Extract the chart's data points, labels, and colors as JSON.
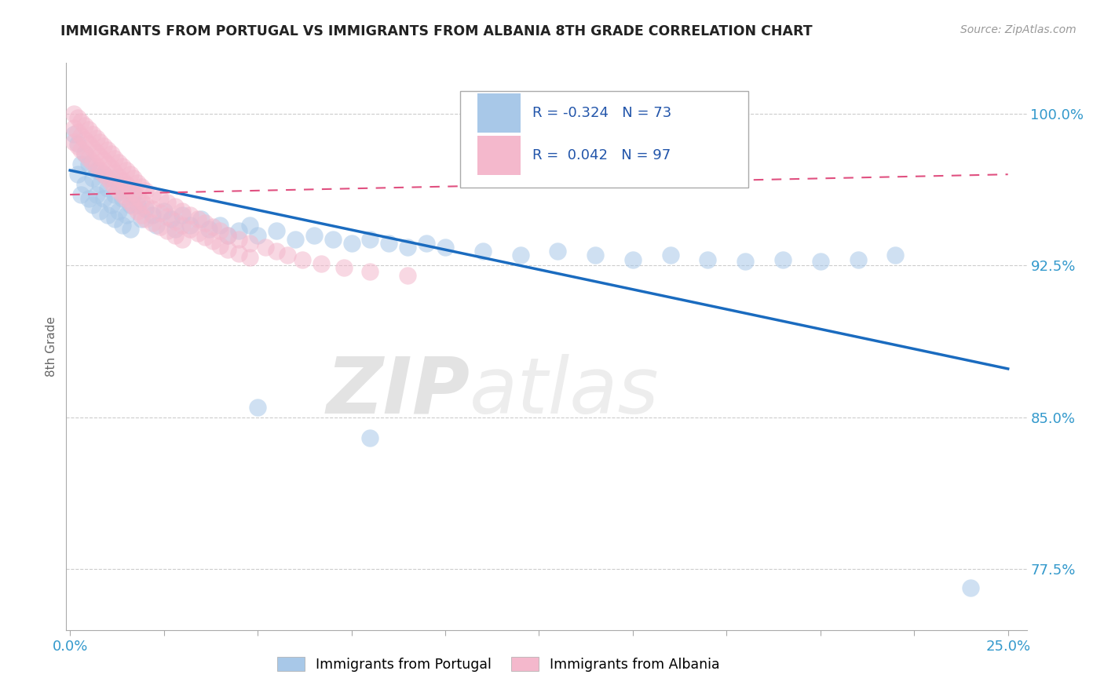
{
  "title": "IMMIGRANTS FROM PORTUGAL VS IMMIGRANTS FROM ALBANIA 8TH GRADE CORRELATION CHART",
  "source_text": "Source: ZipAtlas.com",
  "ylabel": "8th Grade",
  "xlim": [
    -0.001,
    0.255
  ],
  "ylim": [
    0.745,
    1.025
  ],
  "xtick_positions": [
    0.0,
    0.025,
    0.05,
    0.075,
    0.1,
    0.125,
    0.15,
    0.175,
    0.2,
    0.225,
    0.25
  ],
  "xtick_labels_show": [
    "0.0%",
    "",
    "",
    "",
    "",
    "",
    "",
    "",
    "",
    "",
    "25.0%"
  ],
  "ytick_positions": [
    0.775,
    0.85,
    0.925,
    1.0
  ],
  "ytick_labels": [
    "77.5%",
    "85.0%",
    "92.5%",
    "100.0%"
  ],
  "grid_color": "#cccccc",
  "blue_dot_color": "#a8c8e8",
  "pink_dot_color": "#f4b8cc",
  "blue_line_color": "#1a6bbf",
  "pink_line_color": "#e05080",
  "R_blue": -0.324,
  "N_blue": 73,
  "R_pink": 0.042,
  "N_pink": 97,
  "watermark_zip": "ZIP",
  "watermark_atlas": "atlas",
  "legend_items": [
    "Immigrants from Portugal",
    "Immigrants from Albania"
  ],
  "blue_trend_x0": 0.0,
  "blue_trend_y0": 0.972,
  "blue_trend_x1": 0.25,
  "blue_trend_y1": 0.874,
  "pink_trend_x0": 0.0,
  "pink_trend_y0": 0.96,
  "pink_trend_x1": 0.25,
  "pink_trend_y1": 0.97,
  "blue_dots": [
    [
      0.001,
      0.99
    ],
    [
      0.002,
      0.985
    ],
    [
      0.002,
      0.97
    ],
    [
      0.003,
      0.975
    ],
    [
      0.003,
      0.96
    ],
    [
      0.004,
      0.98
    ],
    [
      0.004,
      0.965
    ],
    [
      0.005,
      0.975
    ],
    [
      0.005,
      0.958
    ],
    [
      0.006,
      0.968
    ],
    [
      0.006,
      0.955
    ],
    [
      0.007,
      0.972
    ],
    [
      0.007,
      0.96
    ],
    [
      0.008,
      0.965
    ],
    [
      0.008,
      0.952
    ],
    [
      0.009,
      0.97
    ],
    [
      0.009,
      0.958
    ],
    [
      0.01,
      0.963
    ],
    [
      0.01,
      0.95
    ],
    [
      0.011,
      0.968
    ],
    [
      0.011,
      0.955
    ],
    [
      0.012,
      0.96
    ],
    [
      0.012,
      0.948
    ],
    [
      0.013,
      0.965
    ],
    [
      0.013,
      0.952
    ],
    [
      0.014,
      0.958
    ],
    [
      0.014,
      0.945
    ],
    [
      0.015,
      0.962
    ],
    [
      0.015,
      0.95
    ],
    [
      0.016,
      0.955
    ],
    [
      0.016,
      0.943
    ],
    [
      0.017,
      0.96
    ],
    [
      0.018,
      0.955
    ],
    [
      0.019,
      0.948
    ],
    [
      0.02,
      0.953
    ],
    [
      0.022,
      0.95
    ],
    [
      0.023,
      0.945
    ],
    [
      0.025,
      0.952
    ],
    [
      0.027,
      0.948
    ],
    [
      0.028,
      0.943
    ],
    [
      0.03,
      0.95
    ],
    [
      0.032,
      0.945
    ],
    [
      0.035,
      0.948
    ],
    [
      0.037,
      0.943
    ],
    [
      0.04,
      0.945
    ],
    [
      0.042,
      0.94
    ],
    [
      0.045,
      0.942
    ],
    [
      0.048,
      0.945
    ],
    [
      0.05,
      0.94
    ],
    [
      0.055,
      0.942
    ],
    [
      0.06,
      0.938
    ],
    [
      0.065,
      0.94
    ],
    [
      0.07,
      0.938
    ],
    [
      0.075,
      0.936
    ],
    [
      0.08,
      0.938
    ],
    [
      0.085,
      0.936
    ],
    [
      0.09,
      0.934
    ],
    [
      0.095,
      0.936
    ],
    [
      0.1,
      0.934
    ],
    [
      0.11,
      0.932
    ],
    [
      0.12,
      0.93
    ],
    [
      0.13,
      0.932
    ],
    [
      0.14,
      0.93
    ],
    [
      0.15,
      0.928
    ],
    [
      0.16,
      0.93
    ],
    [
      0.17,
      0.928
    ],
    [
      0.18,
      0.927
    ],
    [
      0.19,
      0.928
    ],
    [
      0.2,
      0.927
    ],
    [
      0.21,
      0.928
    ],
    [
      0.22,
      0.93
    ],
    [
      0.05,
      0.855
    ],
    [
      0.08,
      0.84
    ],
    [
      0.24,
      0.766
    ]
  ],
  "pink_dots": [
    [
      0.001,
      1.0
    ],
    [
      0.001,
      0.993
    ],
    [
      0.001,
      0.986
    ],
    [
      0.002,
      0.998
    ],
    [
      0.002,
      0.991
    ],
    [
      0.002,
      0.984
    ],
    [
      0.003,
      0.996
    ],
    [
      0.003,
      0.989
    ],
    [
      0.003,
      0.982
    ],
    [
      0.004,
      0.994
    ],
    [
      0.004,
      0.987
    ],
    [
      0.004,
      0.98
    ],
    [
      0.005,
      0.992
    ],
    [
      0.005,
      0.985
    ],
    [
      0.005,
      0.978
    ],
    [
      0.006,
      0.99
    ],
    [
      0.006,
      0.983
    ],
    [
      0.006,
      0.976
    ],
    [
      0.007,
      0.988
    ],
    [
      0.007,
      0.981
    ],
    [
      0.007,
      0.974
    ],
    [
      0.008,
      0.986
    ],
    [
      0.008,
      0.979
    ],
    [
      0.008,
      0.972
    ],
    [
      0.009,
      0.984
    ],
    [
      0.009,
      0.977
    ],
    [
      0.009,
      0.97
    ],
    [
      0.01,
      0.982
    ],
    [
      0.01,
      0.975
    ],
    [
      0.01,
      0.968
    ],
    [
      0.011,
      0.98
    ],
    [
      0.011,
      0.973
    ],
    [
      0.011,
      0.966
    ],
    [
      0.012,
      0.978
    ],
    [
      0.012,
      0.971
    ],
    [
      0.012,
      0.964
    ],
    [
      0.013,
      0.976
    ],
    [
      0.013,
      0.969
    ],
    [
      0.013,
      0.962
    ],
    [
      0.014,
      0.974
    ],
    [
      0.014,
      0.967
    ],
    [
      0.014,
      0.96
    ],
    [
      0.015,
      0.972
    ],
    [
      0.015,
      0.965
    ],
    [
      0.015,
      0.958
    ],
    [
      0.016,
      0.97
    ],
    [
      0.016,
      0.963
    ],
    [
      0.016,
      0.956
    ],
    [
      0.017,
      0.968
    ],
    [
      0.017,
      0.961
    ],
    [
      0.017,
      0.954
    ],
    [
      0.018,
      0.966
    ],
    [
      0.018,
      0.959
    ],
    [
      0.018,
      0.952
    ],
    [
      0.019,
      0.964
    ],
    [
      0.019,
      0.957
    ],
    [
      0.019,
      0.95
    ],
    [
      0.02,
      0.962
    ],
    [
      0.02,
      0.955
    ],
    [
      0.02,
      0.948
    ],
    [
      0.022,
      0.96
    ],
    [
      0.022,
      0.953
    ],
    [
      0.022,
      0.946
    ],
    [
      0.024,
      0.958
    ],
    [
      0.024,
      0.951
    ],
    [
      0.024,
      0.944
    ],
    [
      0.026,
      0.956
    ],
    [
      0.026,
      0.949
    ],
    [
      0.026,
      0.942
    ],
    [
      0.028,
      0.954
    ],
    [
      0.028,
      0.947
    ],
    [
      0.028,
      0.94
    ],
    [
      0.03,
      0.952
    ],
    [
      0.03,
      0.945
    ],
    [
      0.03,
      0.938
    ],
    [
      0.032,
      0.95
    ],
    [
      0.032,
      0.943
    ],
    [
      0.034,
      0.948
    ],
    [
      0.034,
      0.941
    ],
    [
      0.036,
      0.946
    ],
    [
      0.036,
      0.939
    ],
    [
      0.038,
      0.944
    ],
    [
      0.038,
      0.937
    ],
    [
      0.04,
      0.942
    ],
    [
      0.04,
      0.935
    ],
    [
      0.042,
      0.94
    ],
    [
      0.042,
      0.933
    ],
    [
      0.045,
      0.938
    ],
    [
      0.045,
      0.931
    ],
    [
      0.048,
      0.936
    ],
    [
      0.048,
      0.929
    ],
    [
      0.052,
      0.934
    ],
    [
      0.055,
      0.932
    ],
    [
      0.058,
      0.93
    ],
    [
      0.062,
      0.928
    ],
    [
      0.067,
      0.926
    ],
    [
      0.073,
      0.924
    ],
    [
      0.08,
      0.922
    ],
    [
      0.09,
      0.92
    ]
  ]
}
